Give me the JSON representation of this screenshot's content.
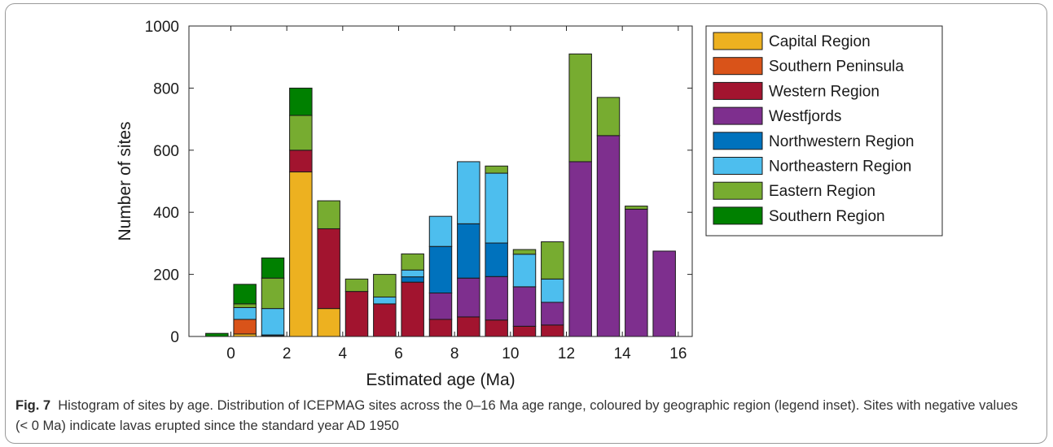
{
  "chart_data": {
    "type": "bar",
    "stacked": true,
    "xlabel": "Estimated age (Ma)",
    "ylabel": "Number of sites",
    "xlim": [
      -1.5,
      16.5
    ],
    "ylim": [
      0,
      1000
    ],
    "xticks": [
      0,
      2,
      4,
      6,
      8,
      10,
      12,
      14,
      16
    ],
    "yticks": [
      0,
      200,
      400,
      600,
      800,
      1000
    ],
    "bin_width": 1,
    "x": [
      -0.5,
      0.5,
      1.5,
      2.5,
      3.5,
      4.5,
      5.5,
      6.5,
      7.5,
      8.5,
      9.5,
      10.5,
      11.5,
      12.5,
      13.5,
      14.5,
      15.5
    ],
    "grid": false,
    "legend_position": "outside-right-top",
    "series": [
      {
        "name": "Capital Region",
        "color": "#EDB120",
        "values": [
          0,
          8,
          0,
          530,
          90,
          0,
          0,
          0,
          0,
          0,
          0,
          0,
          0,
          0,
          0,
          0,
          0
        ]
      },
      {
        "name": "Southern Peninsula",
        "color": "#D95319",
        "values": [
          0,
          47,
          0,
          0,
          0,
          0,
          0,
          0,
          0,
          0,
          0,
          0,
          0,
          0,
          0,
          0,
          0
        ]
      },
      {
        "name": "Western Region",
        "color": "#A2142F",
        "values": [
          0,
          0,
          2,
          70,
          257,
          145,
          105,
          175,
          55,
          63,
          53,
          33,
          37,
          0,
          0,
          0,
          0
        ]
      },
      {
        "name": "Westfjords",
        "color": "#7E2F8E",
        "values": [
          0,
          0,
          0,
          0,
          0,
          0,
          0,
          0,
          85,
          125,
          140,
          127,
          73,
          563,
          647,
          410,
          275
        ]
      },
      {
        "name": "Northwestern Region",
        "color": "#0072BD",
        "values": [
          0,
          0,
          3,
          0,
          0,
          0,
          0,
          17,
          150,
          175,
          108,
          0,
          0,
          0,
          0,
          0,
          0
        ]
      },
      {
        "name": "Northeastern Region",
        "color": "#4DBEEE",
        "values": [
          0,
          38,
          85,
          0,
          0,
          0,
          22,
          22,
          97,
          200,
          225,
          105,
          75,
          0,
          0,
          0,
          0
        ]
      },
      {
        "name": "Eastern Region",
        "color": "#77AC30",
        "values": [
          0,
          12,
          98,
          112,
          90,
          40,
          73,
          52,
          0,
          0,
          23,
          15,
          120,
          347,
          123,
          10,
          0
        ]
      },
      {
        "name": "Southern Region",
        "color": "#008000",
        "values": [
          10,
          63,
          65,
          88,
          0,
          0,
          0,
          0,
          0,
          0,
          0,
          0,
          0,
          0,
          0,
          0,
          0
        ]
      }
    ]
  },
  "caption": {
    "label": "Fig. 7",
    "text": "Histogram of sites by age. Distribution of ICEPMAG sites across the 0–16 Ma age range, coloured by geographic region (legend inset). Sites with negative values (< 0 Ma) indicate lavas erupted since the standard year AD 1950"
  }
}
